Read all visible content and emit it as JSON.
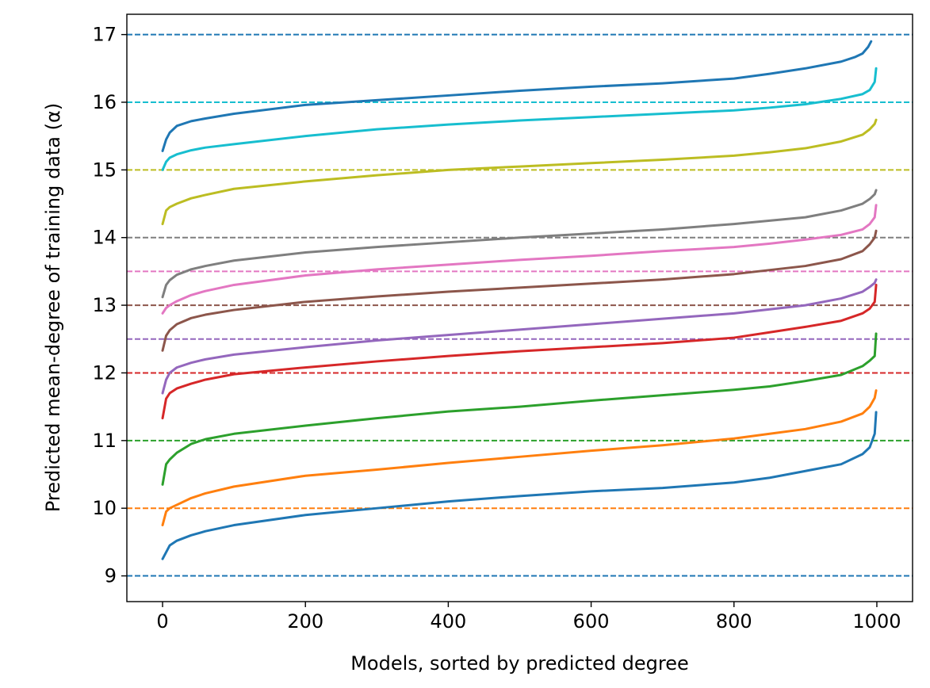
{
  "chart_data": {
    "type": "line",
    "xlabel": "Models, sorted by predicted degree",
    "ylabel": "Predicted mean-degree of training data (α)",
    "xlim": [
      -50,
      1050
    ],
    "ylim": [
      8.62,
      17.3
    ],
    "xticks": [
      0,
      200,
      400,
      600,
      800,
      1000
    ],
    "yticks": [
      9,
      10,
      11,
      12,
      13,
      14,
      15,
      16,
      17
    ],
    "grid": false,
    "legend": "none",
    "reference_lines": [
      {
        "y": 9,
        "color": "#1f77b4",
        "style": "dashed"
      },
      {
        "y": 10,
        "color": "#ff7f0e",
        "style": "dashed"
      },
      {
        "y": 11,
        "color": "#2ca02c",
        "style": "dashed"
      },
      {
        "y": 12,
        "color": "#d62728",
        "style": "dashed"
      },
      {
        "y": 12.5,
        "color": "#9467bd",
        "style": "dashed"
      },
      {
        "y": 13,
        "color": "#8c564b",
        "style": "dashed"
      },
      {
        "y": 13.5,
        "color": "#e377c2",
        "style": "dashed"
      },
      {
        "y": 14,
        "color": "#7f7f7f",
        "style": "dashed"
      },
      {
        "y": 15,
        "color": "#bcbd22",
        "style": "dashed"
      },
      {
        "y": 16,
        "color": "#17becf",
        "style": "dashed"
      },
      {
        "y": 17,
        "color": "#1f77b4",
        "style": "dashed"
      }
    ],
    "series": [
      {
        "color": "#1f77b4",
        "x": [
          0,
          5,
          10,
          20,
          40,
          60,
          100,
          200,
          300,
          400,
          500,
          600,
          700,
          800,
          850,
          900,
          950,
          980,
          990,
          997,
          999
        ],
        "y": [
          9.25,
          9.35,
          9.45,
          9.52,
          9.6,
          9.66,
          9.75,
          9.9,
          10.0,
          10.1,
          10.18,
          10.25,
          10.3,
          10.38,
          10.45,
          10.55,
          10.65,
          10.8,
          10.9,
          11.1,
          11.42
        ]
      },
      {
        "color": "#ff7f0e",
        "x": [
          0,
          5,
          10,
          20,
          40,
          60,
          100,
          200,
          300,
          400,
          500,
          600,
          700,
          800,
          850,
          900,
          950,
          980,
          990,
          997,
          999
        ],
        "y": [
          9.75,
          9.95,
          10.0,
          10.05,
          10.15,
          10.22,
          10.32,
          10.48,
          10.57,
          10.67,
          10.76,
          10.85,
          10.93,
          11.03,
          11.1,
          11.17,
          11.28,
          11.4,
          11.5,
          11.63,
          11.74
        ]
      },
      {
        "color": "#2ca02c",
        "x": [
          0,
          5,
          10,
          20,
          40,
          60,
          100,
          200,
          300,
          400,
          500,
          600,
          700,
          800,
          850,
          900,
          950,
          980,
          990,
          997,
          999
        ],
        "y": [
          10.35,
          10.65,
          10.72,
          10.82,
          10.95,
          11.02,
          11.1,
          11.22,
          11.33,
          11.43,
          11.5,
          11.59,
          11.67,
          11.75,
          11.8,
          11.88,
          11.97,
          12.1,
          12.18,
          12.25,
          12.58
        ]
      },
      {
        "color": "#d62728",
        "x": [
          0,
          5,
          10,
          20,
          40,
          60,
          100,
          200,
          300,
          400,
          500,
          600,
          700,
          800,
          850,
          900,
          950,
          980,
          990,
          997,
          999
        ],
        "y": [
          11.33,
          11.62,
          11.7,
          11.77,
          11.84,
          11.9,
          11.98,
          12.08,
          12.17,
          12.25,
          12.32,
          12.38,
          12.44,
          12.52,
          12.6,
          12.68,
          12.77,
          12.88,
          12.95,
          13.05,
          13.3
        ]
      },
      {
        "color": "#9467bd",
        "x": [
          0,
          5,
          10,
          20,
          40,
          60,
          100,
          200,
          300,
          400,
          500,
          600,
          700,
          800,
          850,
          900,
          950,
          980,
          990,
          997,
          999
        ],
        "y": [
          11.7,
          11.9,
          12.0,
          12.08,
          12.15,
          12.2,
          12.27,
          12.38,
          12.48,
          12.56,
          12.64,
          12.72,
          12.8,
          12.88,
          12.94,
          13.0,
          13.1,
          13.2,
          13.27,
          13.33,
          13.38
        ]
      },
      {
        "color": "#8c564b",
        "x": [
          0,
          5,
          10,
          20,
          40,
          60,
          100,
          200,
          300,
          400,
          500,
          600,
          700,
          800,
          850,
          900,
          950,
          980,
          990,
          997,
          999
        ],
        "y": [
          12.33,
          12.55,
          12.63,
          12.72,
          12.81,
          12.86,
          12.93,
          13.05,
          13.13,
          13.2,
          13.26,
          13.32,
          13.38,
          13.46,
          13.52,
          13.58,
          13.68,
          13.8,
          13.9,
          14.0,
          14.1
        ]
      },
      {
        "color": "#e377c2",
        "x": [
          0,
          5,
          10,
          20,
          40,
          60,
          100,
          200,
          300,
          400,
          500,
          600,
          700,
          800,
          850,
          900,
          950,
          980,
          990,
          997,
          999
        ],
        "y": [
          12.88,
          12.96,
          13.0,
          13.06,
          13.15,
          13.21,
          13.3,
          13.44,
          13.53,
          13.6,
          13.67,
          13.73,
          13.8,
          13.86,
          13.91,
          13.97,
          14.04,
          14.12,
          14.2,
          14.3,
          14.48
        ]
      },
      {
        "color": "#7f7f7f",
        "x": [
          0,
          5,
          10,
          20,
          40,
          60,
          100,
          200,
          300,
          400,
          500,
          600,
          700,
          800,
          850,
          900,
          950,
          980,
          990,
          997,
          999
        ],
        "y": [
          13.12,
          13.3,
          13.37,
          13.45,
          13.53,
          13.58,
          13.66,
          13.78,
          13.86,
          13.93,
          14.0,
          14.06,
          14.12,
          14.2,
          14.25,
          14.3,
          14.4,
          14.5,
          14.57,
          14.64,
          14.7
        ]
      },
      {
        "color": "#bcbd22",
        "x": [
          0,
          5,
          10,
          20,
          40,
          60,
          100,
          200,
          300,
          400,
          500,
          600,
          700,
          800,
          850,
          900,
          950,
          980,
          990,
          997,
          999
        ],
        "y": [
          14.2,
          14.4,
          14.45,
          14.5,
          14.58,
          14.63,
          14.72,
          14.83,
          14.92,
          15.0,
          15.05,
          15.1,
          15.15,
          15.21,
          15.26,
          15.32,
          15.42,
          15.52,
          15.6,
          15.68,
          15.74
        ]
      },
      {
        "color": "#17becf",
        "x": [
          0,
          5,
          10,
          20,
          40,
          60,
          100,
          200,
          300,
          400,
          500,
          600,
          700,
          800,
          850,
          900,
          950,
          980,
          990,
          997,
          999
        ],
        "y": [
          15.0,
          15.12,
          15.18,
          15.23,
          15.29,
          15.33,
          15.38,
          15.5,
          15.6,
          15.67,
          15.73,
          15.78,
          15.83,
          15.88,
          15.92,
          15.97,
          16.05,
          16.12,
          16.18,
          16.3,
          16.5
        ]
      },
      {
        "color": "#1f77b4",
        "x": [
          0,
          5,
          10,
          20,
          40,
          60,
          100,
          200,
          300,
          400,
          500,
          600,
          700,
          800,
          850,
          900,
          950,
          970,
          980,
          988,
          992
        ],
        "y": [
          15.28,
          15.45,
          15.55,
          15.65,
          15.72,
          15.76,
          15.83,
          15.96,
          16.03,
          16.1,
          16.17,
          16.23,
          16.28,
          16.35,
          16.42,
          16.5,
          16.6,
          16.67,
          16.72,
          16.82,
          16.9
        ]
      }
    ]
  }
}
